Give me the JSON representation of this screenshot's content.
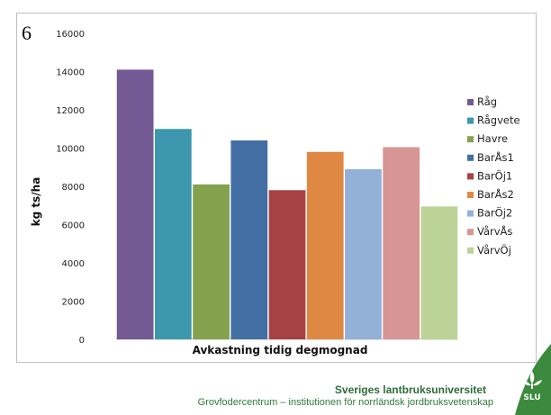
{
  "slide": {
    "number": "6"
  },
  "footer": {
    "title": "Sveriges lantbruksuniversitet",
    "subtitle": "Grovfodercentrum – institutionen för norrländsk jordbruksvetenskap",
    "logo_text": "SLU"
  },
  "chart_data": {
    "type": "bar",
    "title": "",
    "xlabel": "Avkastning tidig degmognad",
    "ylabel": "kg ts/ha",
    "ylim": [
      0,
      16000
    ],
    "yticks": [
      0,
      2000,
      4000,
      6000,
      8000,
      10000,
      12000,
      14000,
      16000
    ],
    "grid": false,
    "legend_position": "right",
    "series": [
      {
        "name": "Råg",
        "value": 14100,
        "color": "#735a94"
      },
      {
        "name": "Rågvete",
        "value": 11000,
        "color": "#3d97ad"
      },
      {
        "name": "Havre",
        "value": 8100,
        "color": "#84a24e"
      },
      {
        "name": "BarÅs1",
        "value": 10400,
        "color": "#436fa4"
      },
      {
        "name": "BarÖj1",
        "value": 7800,
        "color": "#a84143"
      },
      {
        "name": "BarÅs2",
        "value": 9800,
        "color": "#df8843"
      },
      {
        "name": "BarÖj2",
        "value": 8900,
        "color": "#93b1d8"
      },
      {
        "name": "VårvÅs",
        "value": 10050,
        "color": "#d79593"
      },
      {
        "name": "VårvÖj",
        "value": 6950,
        "color": "#bcd398"
      }
    ]
  }
}
